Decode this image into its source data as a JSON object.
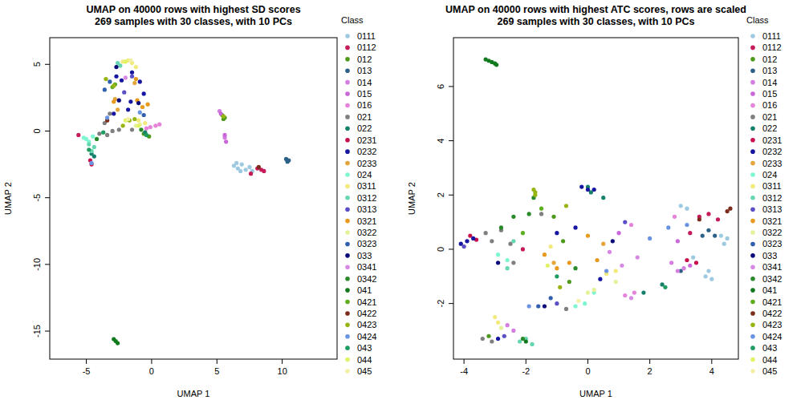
{
  "chart_data": [
    {
      "type": "scatter",
      "title": "UMAP on 40000 rows with highest SD scores",
      "subtitle": "269 samples with 30 classes, with 10 PCs",
      "x_label": "UMAP 1",
      "y_label": "UMAP 2",
      "legend_title": "Class",
      "legend": "right",
      "marker": "circle",
      "xlim": [
        -7.8,
        14.2
      ],
      "ylim": [
        -17.1,
        7
      ],
      "xticks": [
        -5,
        0,
        5,
        10
      ],
      "yticks": [
        5,
        0,
        -5,
        -10,
        -15
      ],
      "series": [
        {
          "name": "0111",
          "color": "#9ecae1",
          "x": [
            6.3,
            6.6,
            6.9,
            7.2,
            7.5,
            6.8,
            7.7,
            6.5
          ],
          "values": [
            -2.6,
            -2.8,
            -2.5,
            -2.9,
            -2.7,
            -3.0,
            -3.0,
            -2.4
          ]
        },
        {
          "name": "0112",
          "color": "#c51b5b",
          "x": [
            7.6,
            8.1,
            8.4,
            8.6,
            -5.6
          ],
          "values": [
            -3.2,
            -2.8,
            -2.9,
            -3.0,
            -0.3
          ]
        },
        {
          "name": "012",
          "color": "#4d9a1c",
          "x": [
            5.4,
            5.5,
            5.6,
            -0.6,
            -0.2
          ],
          "values": [
            1.2,
            0.9,
            1.0,
            -0.2,
            -0.4
          ]
        },
        {
          "name": "013",
          "color": "#2b6186",
          "x": [
            10.3,
            10.4,
            10.5
          ],
          "values": [
            -2.1,
            -2.3,
            -2.2
          ]
        },
        {
          "name": "014",
          "color": "#d47fe0",
          "x": [
            5.2,
            5.6
          ],
          "values": [
            1.5,
            -0.5
          ]
        },
        {
          "name": "015",
          "color": "#c966d9",
          "x": [
            5.3,
            5.7,
            5.6
          ],
          "values": [
            1.3,
            -0.8,
            -0.3
          ]
        },
        {
          "name": "016",
          "color": "#e684d9",
          "x": [
            -0.1,
            0.3,
            0.6,
            -0.4
          ],
          "values": [
            0.3,
            0.4,
            0.5,
            0.2
          ]
        },
        {
          "name": "021",
          "color": "#7f7f7f",
          "x": [
            -3.4,
            -3.0,
            -2.5,
            -3.6,
            -4.0,
            -3.2,
            -1.5
          ],
          "values": [
            -0.3,
            0.0,
            0.1,
            0.6,
            -0.2,
            1.3,
            0.1
          ]
        },
        {
          "name": "022",
          "color": "#17806a",
          "x": [
            -4.6,
            -4.4,
            -0.5
          ],
          "values": [
            -1.7,
            -1.9,
            -0.1
          ]
        },
        {
          "name": "0231",
          "color": "#c8104a",
          "x": [
            -4.7,
            -4.6
          ],
          "values": [
            -2.2,
            -2.5
          ]
        },
        {
          "name": "0232",
          "color": "#1616a0",
          "x": [
            -2.7,
            -2.3,
            -1.5,
            -0.9,
            -0.6,
            -1.6,
            -2.9,
            -1.8
          ],
          "values": [
            4.1,
            3.8,
            4.4,
            3.7,
            2.8,
            2.2,
            1.3,
            1.6
          ]
        },
        {
          "name": "0233",
          "color": "#e3a43a",
          "x": [
            -2.6,
            -2.8,
            -1.3
          ],
          "values": [
            1.6,
            2.4,
            3.6
          ]
        },
        {
          "name": "024",
          "color": "#7ff5d2",
          "x": [
            -5.2,
            -4.8,
            -5.0,
            -4.5
          ],
          "values": [
            -0.5,
            -0.8,
            -0.6,
            -0.4
          ]
        },
        {
          "name": "0311",
          "color": "#f2ea7c",
          "x": [
            -2.2,
            -1.8,
            -1.5,
            -1.2,
            -1.0,
            -0.5
          ],
          "values": [
            5.2,
            5.3,
            5.1,
            4.8,
            0.8,
            0.6
          ]
        },
        {
          "name": "0312",
          "color": "#66d6b0",
          "x": [
            -4.8,
            -4.6,
            -4.4,
            -2.6,
            -2.4
          ],
          "values": [
            -1.0,
            -1.5,
            -1.2,
            5.1,
            4.9
          ]
        },
        {
          "name": "0313",
          "color": "#5a4fc4",
          "x": [
            -2.1,
            -1.5
          ],
          "values": [
            2.9,
            4.1
          ]
        },
        {
          "name": "0321",
          "color": "#e89a1f",
          "x": [
            -2.9,
            -1.2,
            -1.1,
            -0.7,
            -0.3
          ],
          "values": [
            2.2,
            3.9,
            2.3,
            1.8,
            2.0
          ]
        },
        {
          "name": "0322",
          "color": "#e6f29a",
          "x": [
            -0.9,
            -1.2
          ],
          "values": [
            0.5,
            0.4
          ]
        },
        {
          "name": "0323",
          "color": "#2f5fad",
          "x": [
            -3.6,
            -3.2,
            -0.6
          ],
          "values": [
            3.1,
            3.7,
            1.2
          ]
        },
        {
          "name": "033",
          "color": "#0a0a7a",
          "x": [
            -2.5,
            -1.0,
            -2.7
          ],
          "values": [
            2.3,
            2.1,
            4.8
          ]
        },
        {
          "name": "0341",
          "color": "#d68ae3",
          "x": [
            -2.0
          ],
          "values": [
            4.0
          ]
        },
        {
          "name": "0342",
          "color": "#2a8a2a",
          "x": [
            -4.2,
            -0.8
          ],
          "values": [
            -0.6,
            0.1
          ]
        },
        {
          "name": "041",
          "color": "#127a1e",
          "x": [
            -2.9,
            -2.75,
            -2.6
          ],
          "values": [
            -15.6,
            -15.75,
            -15.9
          ]
        },
        {
          "name": "0421",
          "color": "#5fae22",
          "x": [
            -2.8,
            -3.0
          ],
          "values": [
            3.5,
            3.3
          ]
        },
        {
          "name": "0422",
          "color": "#7d2c1c",
          "x": [
            -3.4,
            8.2
          ],
          "values": [
            0.8,
            -2.7
          ]
        },
        {
          "name": "0423",
          "color": "#96b513",
          "x": [
            -1.7,
            -1.3,
            -2.2,
            -3.5,
            -2.9,
            5.5
          ],
          "values": [
            0.8,
            0.9,
            0.4,
            3.9,
            3.4,
            1.1
          ]
        },
        {
          "name": "0424",
          "color": "#6a93e2",
          "x": [
            -4.6,
            -0.9,
            -3.4
          ],
          "values": [
            -2.4,
            1.4,
            1.0
          ]
        },
        {
          "name": "043",
          "color": "#1e9c62",
          "x": [
            -3.7,
            -4.8,
            -0.4
          ],
          "values": [
            -0.1,
            -1.4,
            -0.3
          ]
        },
        {
          "name": "044",
          "color": "#e2f266",
          "x": [
            -2.0,
            -1.0,
            -2.0
          ],
          "values": [
            5.2,
            0.4,
            0.8
          ]
        },
        {
          "name": "045",
          "color": "#f3f0a6",
          "x": [
            -1.6,
            -1.8
          ],
          "values": [
            5.3,
            0.9
          ]
        }
      ]
    },
    {
      "type": "scatter",
      "title": "UMAP on 40000 rows with highest ATC scores, rows are scaled",
      "subtitle": "269 samples with 30 classes, with 10 PCs",
      "x_label": "UMAP 1",
      "y_label": "UMAP 2",
      "legend_title": "Class",
      "legend": "right",
      "marker": "circle",
      "xlim": [
        -4.34,
        4.86
      ],
      "ylim": [
        -4.05,
        7.8
      ],
      "xticks": [
        -4,
        -2,
        0,
        2,
        4
      ],
      "yticks": [
        6,
        4,
        2,
        0,
        -2
      ],
      "series": [
        {
          "name": "0111",
          "color": "#9ecae1",
          "x": [
            3.0,
            3.2,
            4.3,
            4.4,
            4.5,
            3.9,
            4.0,
            3.8,
            3.4
          ],
          "values": [
            1.6,
            1.5,
            0.5,
            0.2,
            0.4,
            -0.8,
            -1.1,
            -1.0,
            -0.3
          ]
        },
        {
          "name": "0112",
          "color": "#c51b5b",
          "x": [
            3.6,
            3.9,
            4.2,
            3.3,
            -2.1
          ],
          "values": [
            1.2,
            1.3,
            1.1,
            0.6,
            0.0
          ]
        },
        {
          "name": "012",
          "color": "#4d9a1c",
          "x": [
            -3.2,
            -0.8,
            -1.1,
            -0.6
          ],
          "values": [
            -3.2,
            0.3,
            1.2,
            -1.2
          ]
        },
        {
          "name": "013",
          "color": "#2b6186",
          "x": [
            3.7,
            3.9,
            4.1,
            3.0
          ],
          "values": [
            0.5,
            0.7,
            0.5,
            -0.8
          ]
        },
        {
          "name": "014",
          "color": "#d47fe0",
          "x": [
            2.9,
            3.1,
            2.7,
            -2.6,
            -2.4
          ],
          "values": [
            -0.8,
            -0.7,
            -0.5,
            -2.8,
            -3.0
          ]
        },
        {
          "name": "015",
          "color": "#c966d9",
          "x": [
            3.3,
            2.9,
            1.0
          ],
          "values": [
            -0.6,
            0.3,
            0.6
          ]
        },
        {
          "name": "016",
          "color": "#e684d9",
          "x": [
            2.8,
            1.2,
            1.5,
            1.4
          ],
          "values": [
            1.2,
            -1.7,
            -1.6,
            0.9
          ]
        },
        {
          "name": "021",
          "color": "#7f7f7f",
          "x": [
            -3.4,
            -3.1,
            -3.3,
            -2.8,
            -3.1,
            -2.5,
            -1.5,
            -2.4,
            -0.7
          ],
          "values": [
            -3.3,
            -3.4,
            0.6,
            0.7,
            0.3,
            0.2,
            1.3,
            -0.5,
            -2.2
          ]
        },
        {
          "name": "022",
          "color": "#17806a",
          "x": [
            0.0,
            0.1,
            0.5,
            1.8,
            2.4
          ],
          "values": [
            2.3,
            2.1,
            1.9,
            -1.6,
            -1.3
          ]
        },
        {
          "name": "0231",
          "color": "#c8104a",
          "x": [
            -3.8,
            -3.6,
            3.5,
            3.2
          ],
          "values": [
            0.5,
            0.35,
            -0.5,
            -0.4
          ]
        },
        {
          "name": "0232",
          "color": "#1616a0",
          "x": [
            -3.9,
            -4.1,
            -3.7,
            -2.9,
            -0.2,
            0.0,
            0.2,
            -1.0,
            0.4,
            -0.4
          ],
          "values": [
            0.3,
            0.2,
            0.4,
            -3.3,
            2.3,
            2.2,
            2.2,
            0.6,
            -1.1,
            0.8
          ]
        },
        {
          "name": "0233",
          "color": "#e3a43a",
          "x": [
            -1.1,
            0.5
          ],
          "values": [
            -0.5,
            0.2
          ]
        },
        {
          "name": "024",
          "color": "#7ff5d2",
          "x": [
            -2.9,
            -2.6,
            -0.4,
            -0.1,
            0.2
          ],
          "values": [
            -0.2,
            -0.4,
            -2.1,
            -2.0,
            -1.6
          ]
        },
        {
          "name": "0311",
          "color": "#f2ea7c",
          "x": [
            -3.0,
            -2.9,
            -1.2,
            0.6,
            0.9
          ],
          "values": [
            -2.5,
            -2.7,
            0.1,
            -0.9,
            -0.8
          ]
        },
        {
          "name": "0312",
          "color": "#66d6b0",
          "x": [
            -2.0,
            -1.8,
            -2.2,
            -2.6,
            -2.4
          ],
          "values": [
            -3.3,
            -3.5,
            -3.4,
            -0.7,
            0.3
          ]
        },
        {
          "name": "0313",
          "color": "#5a4fc4",
          "x": [
            -2.7,
            -4.0,
            -1.0,
            1.2
          ],
          "values": [
            -3.2,
            0.1,
            -2.0,
            1.0
          ]
        },
        {
          "name": "0321",
          "color": "#e89a1f",
          "x": [
            -1.4,
            -1.0,
            0.0,
            0.3,
            -0.6
          ],
          "values": [
            -0.2,
            -0.7,
            0.5,
            -0.4,
            -0.5
          ]
        },
        {
          "name": "0322",
          "color": "#e6f29a",
          "x": [
            -2.8,
            0.2,
            0.0,
            0.9
          ],
          "values": [
            -2.9,
            -1.5,
            -1.6,
            -1.2
          ]
        },
        {
          "name": "0323",
          "color": "#2f5fad",
          "x": [
            -1.2,
            -1.6
          ],
          "values": [
            -1.8,
            -2.1
          ]
        },
        {
          "name": "033",
          "color": "#0a0a7a",
          "x": [
            -2.9,
            -1.4,
            0.8
          ],
          "values": [
            -0.5,
            -2.1,
            0.3
          ]
        },
        {
          "name": "0341",
          "color": "#d68ae3",
          "x": [
            0.7,
            1.4,
            1.1,
            1.6
          ],
          "values": [
            -0.1,
            -1.8,
            -0.6,
            -0.3
          ]
        },
        {
          "name": "0342",
          "color": "#2a8a2a",
          "x": [
            -2.8,
            -2.4,
            -1.75,
            -2.1,
            -0.4,
            -1.9
          ],
          "values": [
            0.8,
            1.2,
            1.9,
            -3.3,
            -0.7,
            1.3
          ]
        },
        {
          "name": "041",
          "color": "#127a1e",
          "x": [
            -3.3,
            -3.2,
            -3.1,
            -3.0,
            -2.95,
            -2.0
          ],
          "values": [
            7.0,
            6.95,
            6.9,
            6.85,
            6.8,
            -3.4
          ]
        },
        {
          "name": "0421",
          "color": "#5fae22",
          "x": [
            -2.1,
            -1.5
          ],
          "values": [
            0.6,
            1.5
          ]
        },
        {
          "name": "0422",
          "color": "#7d2c1c",
          "x": [
            4.6,
            4.5,
            3.6
          ],
          "values": [
            1.5,
            1.4,
            1.1
          ]
        },
        {
          "name": "0423",
          "color": "#96b513",
          "x": [
            -1.7,
            -1.7,
            -1.75,
            -0.7,
            -0.9
          ],
          "values": [
            2.1,
            2.0,
            2.2,
            1.6,
            -1.4
          ]
        },
        {
          "name": "0424",
          "color": "#6a93e2",
          "x": [
            -1.9,
            0.6,
            2.0,
            3.2,
            2.6
          ],
          "values": [
            -2.1,
            -0.8,
            0.4,
            0.9,
            0.8
          ]
        },
        {
          "name": "043",
          "color": "#1e9c62",
          "x": [
            -1.0,
            2.5
          ],
          "values": [
            -1.0,
            -1.4
          ]
        },
        {
          "name": "044",
          "color": "#e2f266",
          "x": [
            -1.3
          ],
          "values": [
            -0.6
          ]
        },
        {
          "name": "045",
          "color": "#f3f0a6",
          "x": [
            -0.3
          ],
          "values": [
            -1.9
          ]
        }
      ]
    }
  ]
}
